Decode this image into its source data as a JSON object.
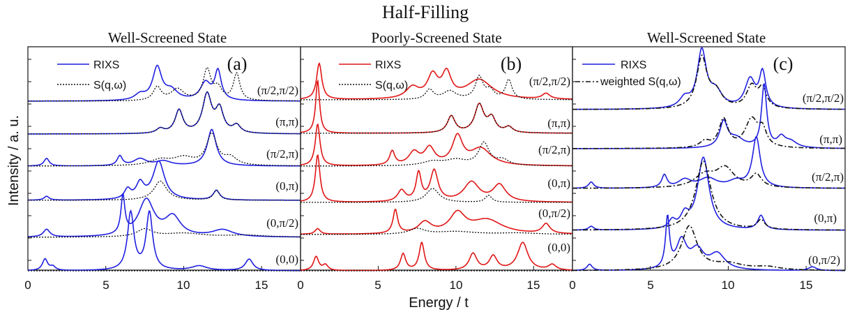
{
  "figure": {
    "title": "Half-Filling",
    "xlabel": "Energy / t",
    "ylabel": "Intensity / a. u."
  },
  "chart_data": [
    {
      "type": "line",
      "panel_label": "(a)",
      "subtitle": "Well-Screened State",
      "xlim": [
        0,
        17.5
      ],
      "x_ticks": [
        "0",
        "5",
        "10",
        "15"
      ],
      "legend": [
        "RIXS",
        "S(q,ω)"
      ],
      "curve_labels": [
        "(π/2,π/2)",
        "(π,π)",
        "(π/2,π)",
        "(0,π)",
        "(0,π/2)",
        "(0,0)"
      ],
      "colors": {
        "RIXS": "#1f1fe0",
        "S": "#111111"
      },
      "series": [
        {
          "name": "RIXS",
          "q": "(π/2,π/2)",
          "peaks": [
            [
              8.3,
              0.85,
              0.35
            ],
            [
              9.2,
              0.25,
              0.5
            ],
            [
              11.4,
              0.45,
              0.4
            ],
            [
              12.2,
              0.75,
              0.25
            ],
            [
              7.2,
              0.15,
              0.4
            ]
          ]
        },
        {
          "name": "S(q,ω)",
          "q": "(π/2,π/2)",
          "peaks": [
            [
              8.3,
              0.35,
              0.3
            ],
            [
              9.6,
              0.3,
              0.5
            ],
            [
              11.5,
              0.8,
              0.3
            ],
            [
              13.4,
              0.7,
              0.25
            ],
            [
              12.2,
              0.3,
              0.3
            ]
          ]
        },
        {
          "name": "RIXS",
          "q": "(π,π)",
          "peaks": [
            [
              9.7,
              0.6,
              0.3
            ],
            [
              8.5,
              0.12,
              0.3
            ],
            [
              11.5,
              1.0,
              0.35
            ],
            [
              12.3,
              0.6,
              0.3
            ],
            [
              13.4,
              0.2,
              0.3
            ]
          ]
        },
        {
          "name": "S(q,ω)",
          "q": "(π,π)",
          "peaks": [
            [
              9.7,
              0.6,
              0.3
            ],
            [
              8.5,
              0.12,
              0.3
            ],
            [
              11.5,
              1.0,
              0.35
            ],
            [
              12.3,
              0.6,
              0.3
            ],
            [
              13.4,
              0.2,
              0.3
            ]
          ]
        },
        {
          "name": "RIXS",
          "q": "(π/2,π)",
          "peaks": [
            [
              1.2,
              0.2,
              0.2
            ],
            [
              5.9,
              0.25,
              0.2
            ],
            [
              7.2,
              0.18,
              0.5
            ],
            [
              11.8,
              0.95,
              0.35
            ],
            [
              8.7,
              0.12,
              0.6
            ]
          ]
        },
        {
          "name": "S(q,ω)",
          "q": "(π/2,π)",
          "peaks": [
            [
              8.5,
              0.15,
              0.8
            ],
            [
              10.0,
              0.2,
              0.8
            ],
            [
              11.8,
              0.8,
              0.4
            ],
            [
              13.0,
              0.2,
              0.5
            ]
          ]
        },
        {
          "name": "RIXS",
          "q": "(0,π)",
          "peaks": [
            [
              1.2,
              0.1,
              0.2
            ],
            [
              6.4,
              0.25,
              0.25
            ],
            [
              7.2,
              0.4,
              0.3
            ],
            [
              8.4,
              1.0,
              0.45
            ],
            [
              12.1,
              0.25,
              0.25
            ]
          ]
        },
        {
          "name": "S(q,ω)",
          "q": "(0,π)",
          "peaks": [
            [
              8.5,
              0.5,
              0.5
            ],
            [
              12.1,
              0.25,
              0.25
            ]
          ]
        },
        {
          "name": "RIXS",
          "q": "(0,π/2)",
          "peaks": [
            [
              1.2,
              0.2,
              0.25
            ],
            [
              6.1,
              1.0,
              0.15
            ],
            [
              7.6,
              0.95,
              0.6
            ],
            [
              9.3,
              0.5,
              0.6
            ],
            [
              12.5,
              0.18,
              0.8
            ]
          ]
        },
        {
          "name": "S(q,ω)",
          "q": "(0,π/2)",
          "peaks": [
            [
              7.5,
              0.2,
              0.6
            ],
            [
              10.0,
              0.1,
              1.5
            ],
            [
              14.0,
              0.05,
              1.5
            ]
          ]
        },
        {
          "name": "RIXS",
          "q": "(0,0)",
          "peaks": [
            [
              1.1,
              0.3,
              0.2
            ],
            [
              1.6,
              0.1,
              0.2
            ],
            [
              6.6,
              1.5,
              0.25
            ],
            [
              7.8,
              1.5,
              0.25
            ],
            [
              11.0,
              0.12,
              0.6
            ],
            [
              14.2,
              0.3,
              0.3
            ]
          ]
        },
        {
          "name": "S(q,ω)",
          "q": "(0,0)",
          "peaks": []
        }
      ]
    },
    {
      "type": "line",
      "panel_label": "(b)",
      "subtitle": "Poorly-Screened State",
      "xlim": [
        0,
        17.5
      ],
      "x_ticks": [
        "0",
        "5",
        "10",
        "15"
      ],
      "legend": [
        "RIXS",
        "S(q,ω)"
      ],
      "curve_labels": [
        "(π/2,π/2)",
        "(π,π)",
        "(π/2,π)",
        "(0,π)",
        "(0,π/2)",
        "(0,0)"
      ],
      "colors": {
        "RIXS": "#e01515",
        "S": "#111111"
      },
      "series": [
        {
          "name": "RIXS",
          "q": "(π/2,π/2)",
          "peaks": [
            [
              1.2,
              1.3,
              0.2
            ],
            [
              7.2,
              0.4,
              0.5
            ],
            [
              8.5,
              0.8,
              0.4
            ],
            [
              9.4,
              0.85,
              0.35
            ],
            [
              11.5,
              0.7,
              1.0
            ],
            [
              15.8,
              0.2,
              0.3
            ]
          ]
        },
        {
          "name": "S(q,ω)",
          "q": "(π/2,π/2)",
          "peaks": [
            [
              8.3,
              0.35,
              0.3
            ],
            [
              9.6,
              0.3,
              0.5
            ],
            [
              11.5,
              0.8,
              0.3
            ],
            [
              13.4,
              0.7,
              0.25
            ],
            [
              12.2,
              0.3,
              0.3
            ]
          ]
        },
        {
          "name": "RIXS",
          "q": "(π,π)",
          "peaks": [
            [
              1.1,
              1.9,
              0.15
            ],
            [
              9.7,
              0.6,
              0.3
            ],
            [
              11.5,
              1.0,
              0.35
            ],
            [
              12.3,
              0.5,
              0.3
            ],
            [
              13.4,
              0.2,
              0.3
            ]
          ]
        },
        {
          "name": "S(q,ω)",
          "q": "(π,π)",
          "peaks": [
            [
              9.7,
              0.6,
              0.3
            ],
            [
              11.5,
              1.0,
              0.35
            ],
            [
              12.3,
              0.5,
              0.3
            ],
            [
              13.4,
              0.2,
              0.3
            ]
          ]
        },
        {
          "name": "RIXS",
          "q": "(π/2,π)",
          "peaks": [
            [
              1.1,
              1.5,
              0.18
            ],
            [
              5.9,
              0.5,
              0.2
            ],
            [
              7.3,
              0.45,
              0.4
            ],
            [
              8.3,
              0.6,
              0.4
            ],
            [
              10.1,
              1.0,
              0.4
            ],
            [
              11.6,
              0.6,
              0.8
            ]
          ]
        },
        {
          "name": "S(q,ω)",
          "q": "(π/2,π)",
          "peaks": [
            [
              8.5,
              0.15,
              0.8
            ],
            [
              10.0,
              0.2,
              0.8
            ],
            [
              11.8,
              0.8,
              0.4
            ],
            [
              13.0,
              0.2,
              0.5
            ]
          ]
        },
        {
          "name": "RIXS",
          "q": "(0,π)",
          "peaks": [
            [
              1.1,
              1.7,
              0.18
            ],
            [
              6.5,
              0.4,
              0.3
            ],
            [
              7.6,
              1.0,
              0.2
            ],
            [
              8.6,
              1.1,
              0.3
            ],
            [
              11.0,
              0.7,
              0.6
            ],
            [
              12.8,
              0.6,
              0.5
            ]
          ]
        },
        {
          "name": "S(q,ω)",
          "q": "(0,π)",
          "peaks": [
            [
              8.5,
              0.5,
              0.5
            ],
            [
              12.1,
              0.25,
              0.25
            ]
          ]
        },
        {
          "name": "RIXS",
          "q": "(0,π/2)",
          "peaks": [
            [
              1.1,
              0.2,
              0.2
            ],
            [
              6.1,
              0.85,
              0.18
            ],
            [
              8.0,
              0.4,
              0.5
            ],
            [
              10.1,
              0.7,
              0.6
            ],
            [
              12.0,
              0.5,
              1.2
            ],
            [
              15.8,
              0.35,
              0.3
            ]
          ]
        },
        {
          "name": "S(q,ω)",
          "q": "(0,π/2)",
          "peaks": [
            [
              7.5,
              0.2,
              0.6
            ],
            [
              10.0,
              0.1,
              1.5
            ],
            [
              14.0,
              0.05,
              1.5
            ]
          ]
        },
        {
          "name": "RIXS",
          "q": "(0,0)",
          "peaks": [
            [
              1.0,
              0.5,
              0.2
            ],
            [
              1.6,
              0.2,
              0.2
            ],
            [
              6.6,
              0.6,
              0.2
            ],
            [
              7.8,
              1.0,
              0.2
            ],
            [
              11.1,
              0.6,
              0.3
            ],
            [
              12.4,
              0.5,
              0.3
            ],
            [
              14.3,
              1.0,
              0.4
            ],
            [
              16.2,
              0.2,
              0.3
            ]
          ]
        },
        {
          "name": "S(q,ω)",
          "q": "(0,0)",
          "peaks": []
        }
      ]
    },
    {
      "type": "line",
      "panel_label": "(c)",
      "subtitle": "Well-Screened State",
      "xlim": [
        0,
        17.5
      ],
      "x_ticks": [
        "0",
        "5",
        "10",
        "15"
      ],
      "legend": [
        "RIXS",
        "weighted S(q,ω)"
      ],
      "curve_labels": [
        "(π/2,π/2)",
        "(π,π)",
        "(π/2,π)",
        "(0,π)",
        "(0,π/2)"
      ],
      "colors": {
        "RIXS": "#1f1fe0",
        "S": "#111111"
      },
      "series": [
        {
          "name": "RIXS",
          "q": "(π/2,π/2)",
          "peaks": [
            [
              8.3,
              1.8,
              0.35
            ],
            [
              9.2,
              0.5,
              0.5
            ],
            [
              11.4,
              0.9,
              0.4
            ],
            [
              12.2,
              1.1,
              0.25
            ],
            [
              7.2,
              0.3,
              0.4
            ]
          ]
        },
        {
          "name": "weighted S(q,ω)",
          "q": "(π/2,π/2)",
          "peaks": [
            [
              8.3,
              1.6,
              0.4
            ],
            [
              9.2,
              0.5,
              0.5
            ],
            [
              11.5,
              0.7,
              0.4
            ],
            [
              12.2,
              0.6,
              0.3
            ]
          ]
        },
        {
          "name": "RIXS",
          "q": "(π,π)",
          "peaks": [
            [
              9.7,
              0.8,
              0.3
            ],
            [
              10.5,
              0.3,
              0.6
            ],
            [
              12.3,
              2.0,
              0.2
            ],
            [
              13.4,
              0.3,
              0.3
            ],
            [
              14.0,
              0.2,
              0.5
            ]
          ]
        },
        {
          "name": "weighted S(q,ω)",
          "q": "(π,π)",
          "peaks": [
            [
              9.7,
              0.9,
              0.35
            ],
            [
              11.5,
              0.9,
              0.5
            ],
            [
              12.2,
              0.5,
              0.3
            ],
            [
              8.5,
              0.2,
              0.4
            ]
          ]
        },
        {
          "name": "RIXS",
          "q": "(π/2,π)",
          "peaks": [
            [
              1.2,
              0.2,
              0.2
            ],
            [
              5.9,
              0.4,
              0.2
            ],
            [
              7.2,
              0.25,
              0.5
            ],
            [
              8.7,
              0.3,
              0.7
            ],
            [
              10.5,
              0.2,
              0.6
            ],
            [
              11.8,
              1.6,
              0.3
            ]
          ]
        },
        {
          "name": "weighted S(q,ω)",
          "q": "(π/2,π)",
          "peaks": [
            [
              8.5,
              0.4,
              0.8
            ],
            [
              9.8,
              0.6,
              0.7
            ],
            [
              11.8,
              0.4,
              0.4
            ]
          ]
        },
        {
          "name": "RIXS",
          "q": "(0,π)",
          "peaks": [
            [
              1.2,
              0.12,
              0.2
            ],
            [
              6.4,
              0.25,
              0.25
            ],
            [
              7.2,
              0.4,
              0.3
            ],
            [
              8.4,
              2.3,
              0.45
            ],
            [
              12.1,
              0.45,
              0.25
            ]
          ]
        },
        {
          "name": "weighted S(q,ω)",
          "q": "(0,π)",
          "peaks": [
            [
              8.4,
              2.2,
              0.6
            ],
            [
              12.1,
              0.3,
              0.3
            ]
          ]
        },
        {
          "name": "RIXS",
          "q": "(0,π/2)",
          "peaks": [
            [
              1.1,
              0.2,
              0.2
            ],
            [
              6.1,
              1.6,
              0.15
            ],
            [
              7.0,
              0.9,
              0.4
            ],
            [
              8.0,
              0.6,
              0.5
            ],
            [
              9.3,
              0.5,
              0.6
            ],
            [
              15.4,
              0.12,
              0.3
            ]
          ]
        },
        {
          "name": "weighted S(q,ω)",
          "q": "(0,π/2)",
          "peaks": [
            [
              7.5,
              1.4,
              0.6
            ],
            [
              10.0,
              0.2,
              1.2
            ],
            [
              12.5,
              0.1,
              1.0
            ]
          ]
        }
      ]
    }
  ]
}
